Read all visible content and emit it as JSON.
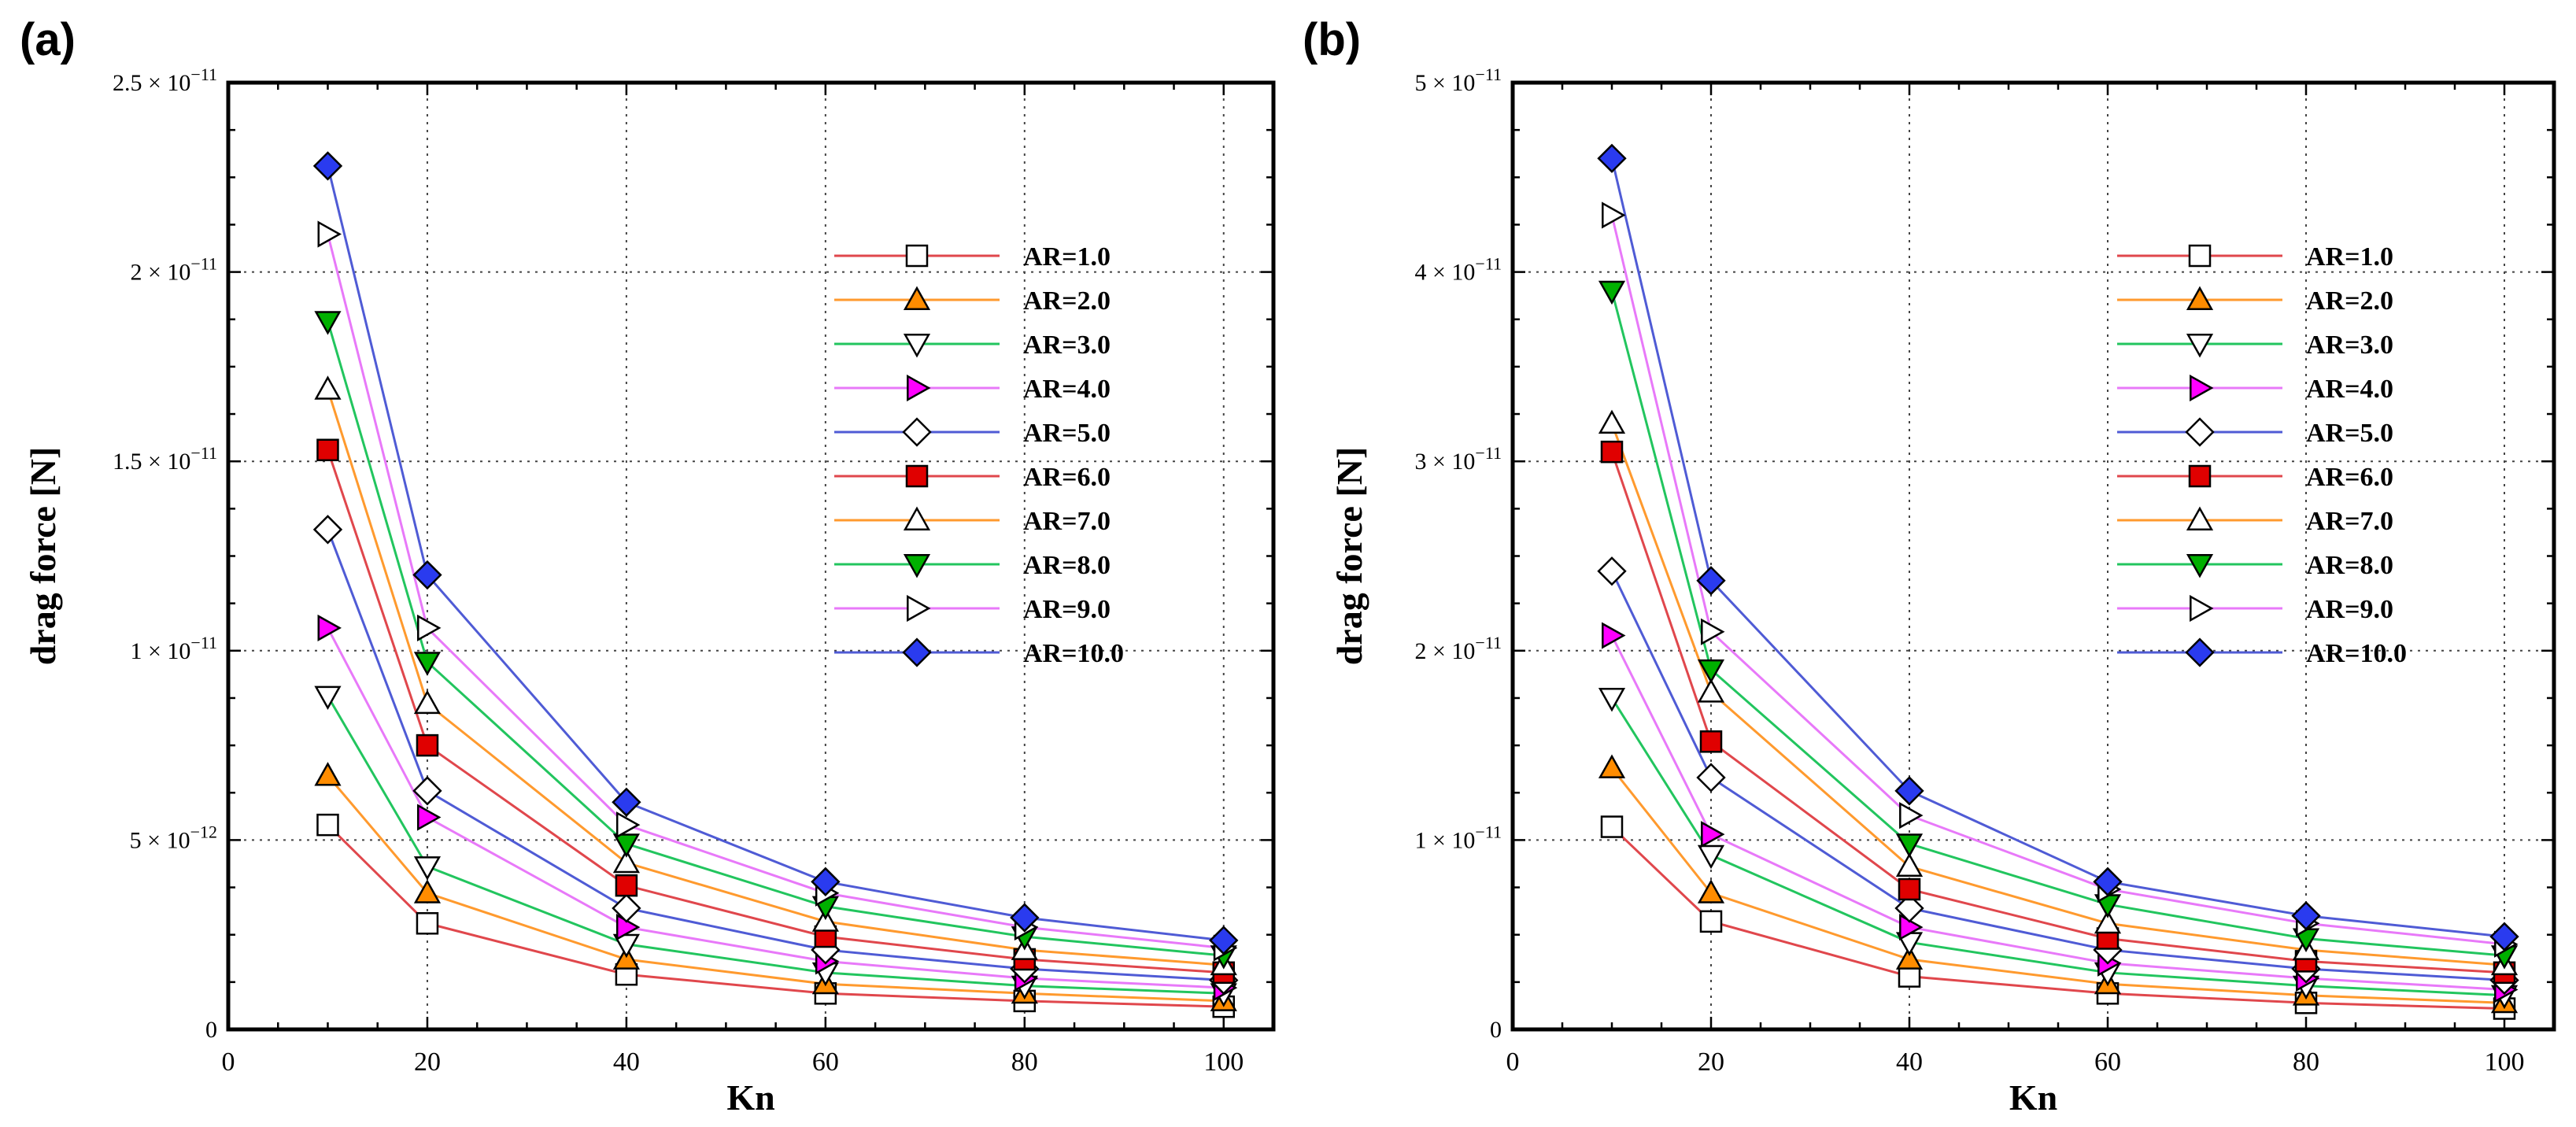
{
  "figure": {
    "panels": [
      "(a)",
      "(b)"
    ]
  },
  "series_styles": [
    {
      "name": "AR=1.0",
      "line": "#e0474c",
      "marker": "square",
      "fill": "#ffffff"
    },
    {
      "name": "AR=2.0",
      "line": "#ff9a2e",
      "marker": "triangle-up",
      "fill": "#ff8c00"
    },
    {
      "name": "AR=3.0",
      "line": "#22c55e",
      "marker": "triangle-down",
      "fill": "#ffffff"
    },
    {
      "name": "AR=4.0",
      "line": "#e879f9",
      "marker": "triangle-right",
      "fill": "#ff00ff"
    },
    {
      "name": "AR=5.0",
      "line": "#4f5bd5",
      "marker": "diamond",
      "fill": "#ffffff"
    },
    {
      "name": "AR=6.0",
      "line": "#e0474c",
      "marker": "square",
      "fill": "#e00000"
    },
    {
      "name": "AR=7.0",
      "line": "#ff9a2e",
      "marker": "triangle-up",
      "fill": "#ffffff"
    },
    {
      "name": "AR=8.0",
      "line": "#22c55e",
      "marker": "triangle-down",
      "fill": "#00b000"
    },
    {
      "name": "AR=9.0",
      "line": "#e879f9",
      "marker": "triangle-right",
      "fill": "#ffffff"
    },
    {
      "name": "AR=10.0",
      "line": "#4f5bd5",
      "marker": "diamond",
      "fill": "#2a3bef"
    }
  ],
  "chart_data": [
    {
      "type": "line",
      "panel": "(a)",
      "xlabel": "Kn",
      "ylabel": "drag force [N]",
      "x": [
        10,
        20,
        40,
        60,
        80,
        100
      ],
      "xlim": [
        0,
        105
      ],
      "xticks": [
        "0",
        "20",
        "40",
        "60",
        "80",
        "100"
      ],
      "ylim": [
        0,
        2.5e-11
      ],
      "yticks": [
        {
          "value": 0,
          "mant": "0",
          "exp": ""
        },
        {
          "value": 5e-12,
          "mant": "5 × 10",
          "exp": "−12"
        },
        {
          "value": 1e-11,
          "mant": "1 × 10",
          "exp": "−11"
        },
        {
          "value": 1.5e-11,
          "mant": "1.5 × 10",
          "exp": "−11"
        },
        {
          "value": 2e-11,
          "mant": "2 × 10",
          "exp": "−11"
        },
        {
          "value": 2.5e-11,
          "mant": "2.5 × 10",
          "exp": "−11"
        }
      ],
      "legend_position": "upper-right",
      "series": [
        {
          "name": "AR=1.0",
          "values": [
            5.4e-12,
            2.8e-12,
            1.45e-12,
            9.5e-13,
            7.5e-13,
            6e-13
          ]
        },
        {
          "name": "AR=2.0",
          "values": [
            6.7e-12,
            3.6e-12,
            1.85e-12,
            1.2e-12,
            9.5e-13,
            7.5e-13
          ]
        },
        {
          "name": "AR=3.0",
          "values": [
            8.8e-12,
            4.3e-12,
            2.25e-12,
            1.5e-12,
            1.15e-12,
            9.5e-13
          ]
        },
        {
          "name": "AR=4.0",
          "values": [
            1.06e-11,
            5.6e-12,
            2.7e-12,
            1.8e-12,
            1.35e-12,
            1.1e-12
          ]
        },
        {
          "name": "AR=5.0",
          "values": [
            1.32e-11,
            6.3e-12,
            3.2e-12,
            2.1e-12,
            1.6e-12,
            1.3e-12
          ]
        },
        {
          "name": "AR=6.0",
          "values": [
            1.53e-11,
            7.5e-12,
            3.8e-12,
            2.45e-12,
            1.85e-12,
            1.5e-12
          ]
        },
        {
          "name": "AR=7.0",
          "values": [
            1.69e-11,
            8.6e-12,
            4.4e-12,
            2.85e-12,
            2.1e-12,
            1.7e-12
          ]
        },
        {
          "name": "AR=8.0",
          "values": [
            1.87e-11,
            9.7e-12,
            4.9e-12,
            3.25e-12,
            2.45e-12,
            1.95e-12
          ]
        },
        {
          "name": "AR=9.0",
          "values": [
            2.1e-11,
            1.06e-11,
            5.4e-12,
            3.6e-12,
            2.7e-12,
            2.15e-12
          ]
        },
        {
          "name": "AR=10.0",
          "values": [
            2.28e-11,
            1.2e-11,
            6e-12,
            3.9e-12,
            2.95e-12,
            2.35e-12
          ]
        }
      ]
    },
    {
      "type": "line",
      "panel": "(b)",
      "xlabel": "Kn",
      "ylabel": "drag force [N]",
      "x": [
        10,
        20,
        40,
        60,
        80,
        100
      ],
      "xlim": [
        0,
        105
      ],
      "xticks": [
        "0",
        "20",
        "40",
        "60",
        "80",
        "100"
      ],
      "ylim": [
        0,
        5e-11
      ],
      "yticks": [
        {
          "value": 0,
          "mant": "0",
          "exp": ""
        },
        {
          "value": 1e-11,
          "mant": "1 × 10",
          "exp": "−11"
        },
        {
          "value": 2e-11,
          "mant": "2 × 10",
          "exp": "−11"
        },
        {
          "value": 3e-11,
          "mant": "3 × 10",
          "exp": "−11"
        },
        {
          "value": 4e-11,
          "mant": "4 × 10",
          "exp": "−11"
        },
        {
          "value": 5e-11,
          "mant": "5 × 10",
          "exp": "−11"
        }
      ],
      "legend_position": "upper-right",
      "series": [
        {
          "name": "AR=1.0",
          "values": [
            1.07e-11,
            5.7e-12,
            2.8e-12,
            1.9e-12,
            1.4e-12,
            1.1e-12
          ]
        },
        {
          "name": "AR=2.0",
          "values": [
            1.38e-11,
            7.2e-12,
            3.7e-12,
            2.4e-12,
            1.8e-12,
            1.4e-12
          ]
        },
        {
          "name": "AR=3.0",
          "values": [
            1.75e-11,
            9.2e-12,
            4.6e-12,
            3e-12,
            2.3e-12,
            1.8e-12
          ]
        },
        {
          "name": "AR=4.0",
          "values": [
            2.08e-11,
            1.03e-11,
            5.4e-12,
            3.5e-12,
            2.7e-12,
            2.1e-12
          ]
        },
        {
          "name": "AR=5.0",
          "values": [
            2.42e-11,
            1.33e-11,
            6.4e-12,
            4.2e-12,
            3.2e-12,
            2.6e-12
          ]
        },
        {
          "name": "AR=6.0",
          "values": [
            3.05e-11,
            1.52e-11,
            7.4e-12,
            4.8e-12,
            3.6e-12,
            3e-12
          ]
        },
        {
          "name": "AR=7.0",
          "values": [
            3.2e-11,
            1.78e-11,
            8.6e-12,
            5.6e-12,
            4.2e-12,
            3.4e-12
          ]
        },
        {
          "name": "AR=8.0",
          "values": [
            3.9e-11,
            1.9e-11,
            9.8e-12,
            6.6e-12,
            4.8e-12,
            3.9e-12
          ]
        },
        {
          "name": "AR=9.0",
          "values": [
            4.3e-11,
            2.1e-11,
            1.13e-11,
            7.4e-12,
            5.6e-12,
            4.5e-12
          ]
        },
        {
          "name": "AR=10.0",
          "values": [
            4.6e-11,
            2.37e-11,
            1.26e-11,
            7.8e-12,
            6e-12,
            4.9e-12
          ]
        }
      ]
    }
  ]
}
